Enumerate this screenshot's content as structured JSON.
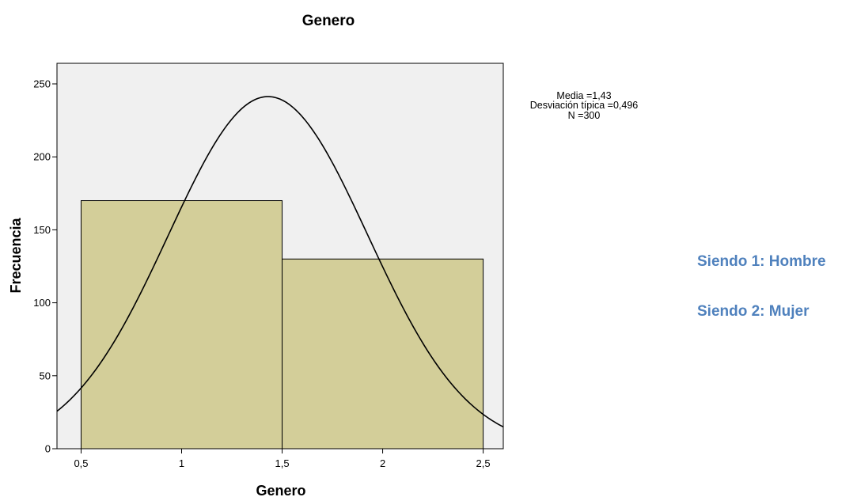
{
  "notes": [
    "Siendo 1: Hombre",
    "Siendo 2: Mujer"
  ],
  "colors": {
    "plot_background": "#f0f0f0",
    "bar_fill": "#d3ce99",
    "curve": "#000000",
    "note_text": "#4f81bd"
  },
  "chart_data": {
    "type": "bar",
    "subtype": "histogram",
    "title": "Genero",
    "xlabel": "Genero",
    "ylabel": "Frecuencia",
    "bins": [
      {
        "from": 0.5,
        "to": 1.5,
        "value": 170
      },
      {
        "from": 1.5,
        "to": 2.5,
        "value": 130
      }
    ],
    "xlim": [
      0.38,
      2.6
    ],
    "ylim": [
      0,
      250
    ],
    "x_ticks": [
      0.5,
      1,
      1.5,
      2,
      2.5
    ],
    "x_tick_labels": [
      "0,5",
      "1",
      "1,5",
      "2",
      "2,5"
    ],
    "y_ticks": [
      0,
      50,
      100,
      150,
      200,
      250
    ],
    "y_tick_labels": [
      "0",
      "50",
      "100",
      "150",
      "200",
      "250"
    ],
    "normal_curve": {
      "mean": 1.43,
      "sd": 0.496,
      "n": 300,
      "bin_width": 1
    },
    "stats_text": [
      "Media =1,43",
      "Desviación típica =0,496",
      "N =300"
    ],
    "grid": false,
    "legend": "none"
  }
}
